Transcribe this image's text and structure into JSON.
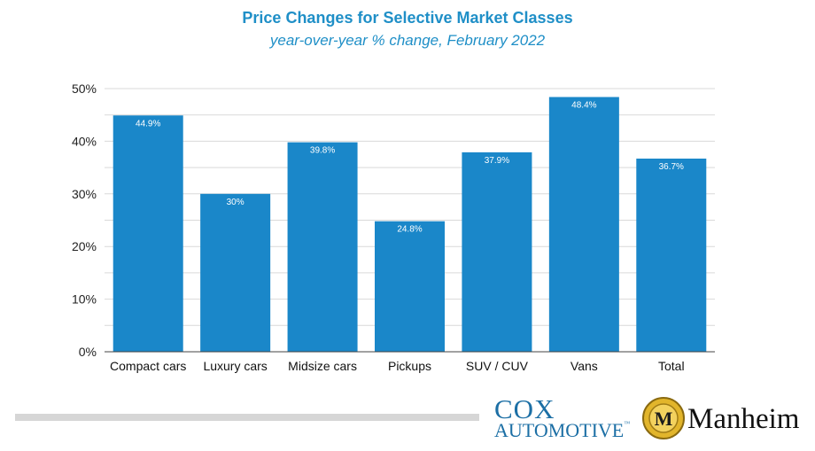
{
  "title": "Price Changes for Selective Market Classes",
  "subtitle": "year-over-year % change, February 2022",
  "colors": {
    "bar": "#1a87c9",
    "title": "#1f8fc7",
    "grid": "#d9d9d9",
    "logo_blue": "#1c6fa5",
    "logo_gold": "#e2b52b"
  },
  "chart_data": {
    "type": "bar",
    "title": "Price Changes for Selective Market Classes",
    "subtitle": "year-over-year % change, February 2022",
    "categories": [
      "Compact cars",
      "Luxury cars",
      "Midsize cars",
      "Pickups",
      "SUV / CUV",
      "Vans",
      "Total"
    ],
    "values": [
      44.9,
      30,
      39.8,
      24.8,
      37.9,
      48.4,
      36.7
    ],
    "data_labels": [
      "44.9%",
      "30%",
      "39.8%",
      "24.8%",
      "37.9%",
      "48.4%",
      "36.7%"
    ],
    "ylim": [
      0,
      50
    ],
    "yticks": [
      0,
      10,
      20,
      30,
      40,
      50
    ],
    "ytick_labels": [
      "0%",
      "10%",
      "20%",
      "30%",
      "40%",
      "50%"
    ],
    "xlabel": "",
    "ylabel": "",
    "grid": true,
    "legend": "none"
  },
  "footer": {
    "cox_line1": "COX",
    "cox_line2": "AUTOMOTIVE",
    "cox_tm": "™",
    "manheim_word": "Manheim",
    "manheim_emblem_letter": "M"
  }
}
